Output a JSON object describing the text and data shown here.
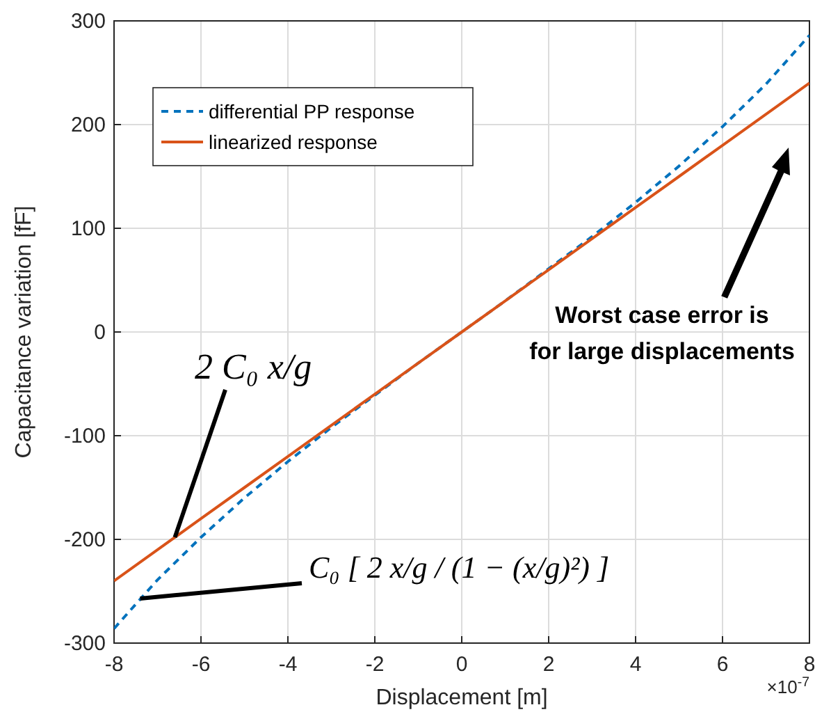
{
  "chart_data": {
    "type": "line",
    "xlabel": "Displacement [m]",
    "ylabel": "Capacitance variation [fF]",
    "x": [
      -8,
      -7,
      -6,
      -5,
      -4,
      -3,
      -2,
      -1,
      0,
      1,
      2,
      3,
      4,
      5,
      6,
      7,
      8
    ],
    "series": [
      {
        "name": "differential PP response",
        "color": "#0072bd",
        "line_style": "dashed",
        "values": [
          -286,
          -239,
          -198,
          -160,
          -125,
          -92,
          -61,
          -30,
          0,
          30,
          61,
          92,
          125,
          160,
          198,
          239,
          286
        ]
      },
      {
        "name": "linearized response",
        "color": "#d95319",
        "line_style": "solid",
        "values": [
          -240,
          -210,
          -180,
          -150,
          -120,
          -90,
          -60,
          -30,
          0,
          30,
          60,
          90,
          120,
          150,
          180,
          210,
          240
        ]
      }
    ],
    "xlim": [
      -8,
      8
    ],
    "xticks": [
      -8,
      -6,
      -4,
      -2,
      0,
      2,
      4,
      6,
      8
    ],
    "ylim": [
      -300,
      300
    ],
    "yticks": [
      -300,
      -200,
      -100,
      0,
      100,
      200,
      300
    ],
    "grid": true,
    "legend": "top left",
    "marker": "none",
    "annotations": [
      "×10$^{-7}$",
      {
        "text": "2 C₀ x/g",
        "x": -6.6,
        "y": -198
      },
      {
        "text": "C₀ [ 2 x/g / (1 − (x/g)²) ]",
        "x": -7.4,
        "y": -257
      },
      "Worst case error is for large displacements"
    ]
  }
}
